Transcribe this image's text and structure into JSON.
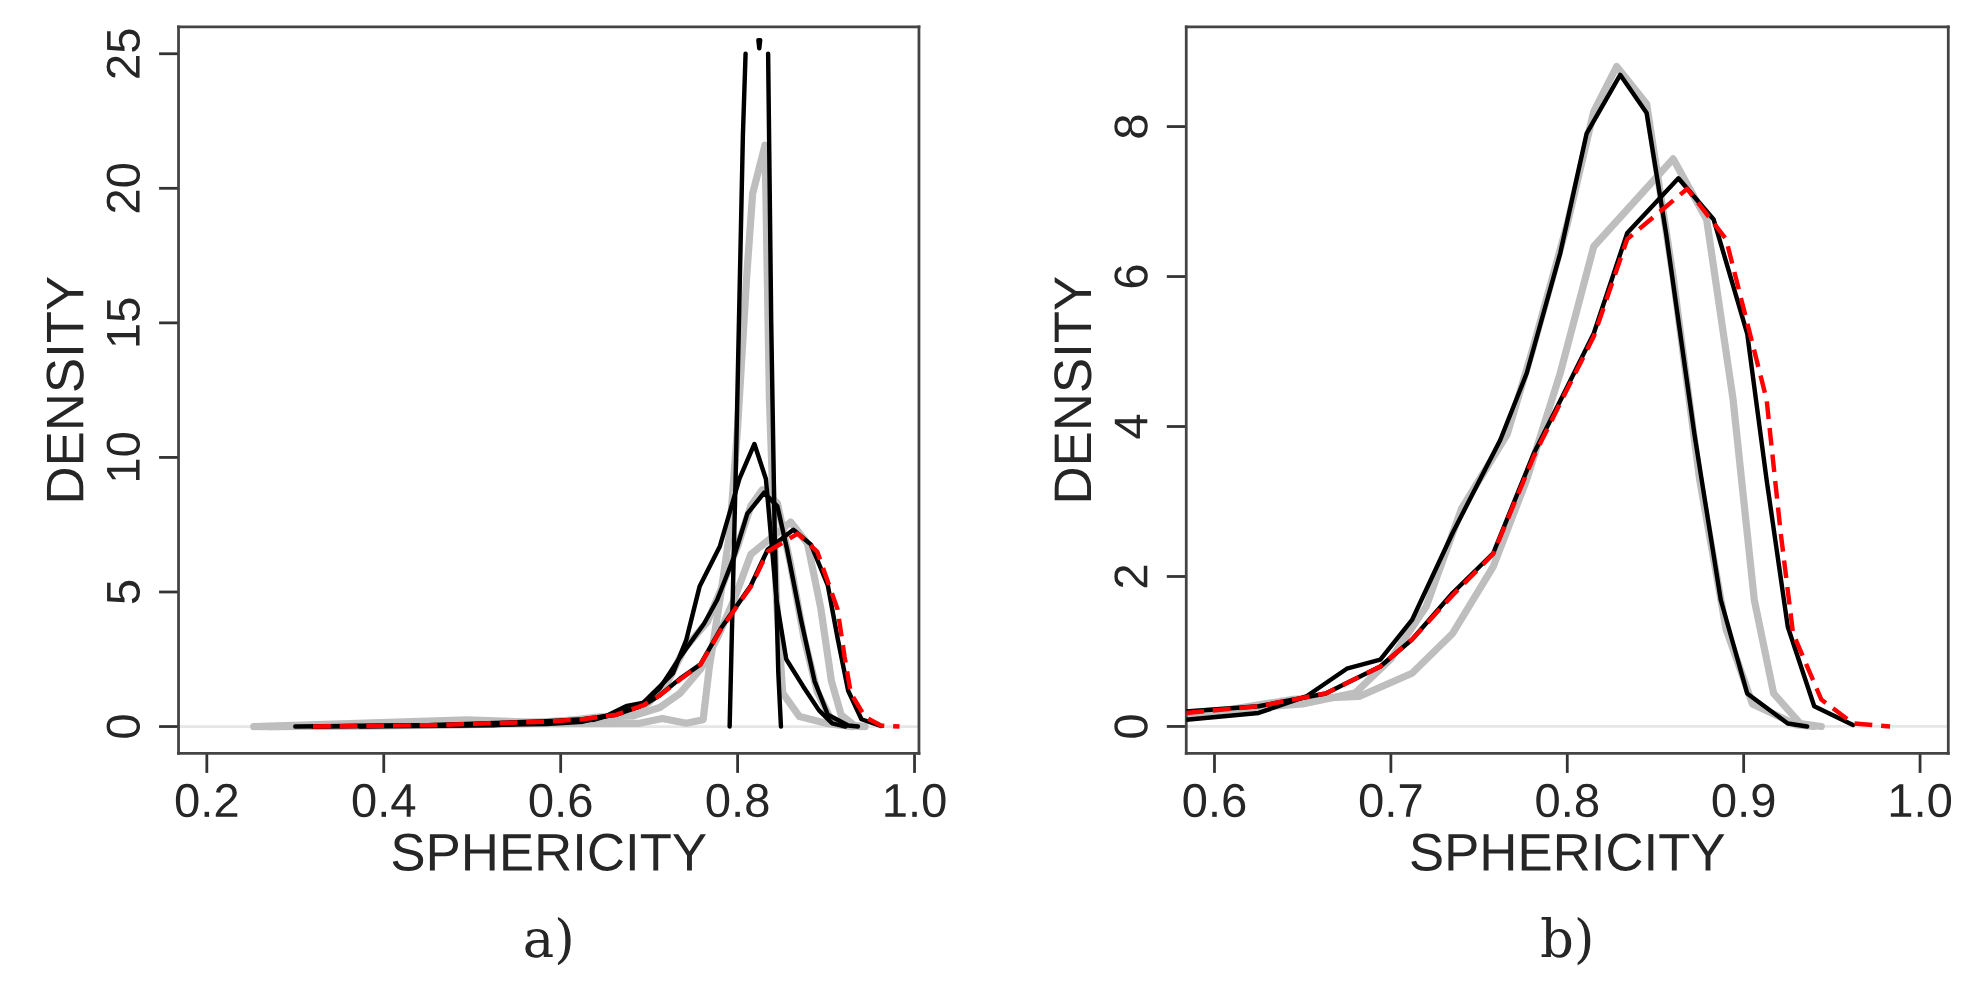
{
  "chart_data": [
    {
      "type": "line",
      "title": "a)",
      "xlabel": "SPHERICITY",
      "ylabel": "DENSITY",
      "xlim": [
        0.168,
        1.005
      ],
      "ylim": [
        -1.0,
        26.0
      ],
      "xticks": [
        {
          "value": 0.2,
          "label": "0.2"
        },
        {
          "value": 0.4,
          "label": "0.4"
        },
        {
          "value": 0.6,
          "label": "0.6"
        },
        {
          "value": 0.8,
          "label": "0.8"
        },
        {
          "value": 1.0,
          "label": "1.0"
        }
      ],
      "yticks": [
        0,
        5,
        10,
        15,
        20,
        25
      ],
      "grid": false,
      "legend": false,
      "ref_lines": [
        {
          "axis": "y",
          "value": 0,
          "color": "#e6e6e6"
        }
      ],
      "series": [
        {
          "color": "#bebebe",
          "x": [
            0.253,
            0.494,
            0.599,
            0.689,
            0.715,
            0.742,
            0.761,
            0.768,
            0.78,
            0.791,
            0.8,
            0.81,
            0.817,
            0.831,
            0.836,
            0.844,
            0.851,
            0.87,
            0.9,
            0.93
          ],
          "values": [
            0,
            0.25,
            0.12,
            0.12,
            0.3,
            0.12,
            0.25,
            2.2,
            4.7,
            7.2,
            11.1,
            16.6,
            19.8,
            21.6,
            12.1,
            4.7,
            1.24,
            0.37,
            0.12,
            0
          ]
        },
        {
          "color": "#bebebe",
          "x": [
            0.26,
            0.4,
            0.5,
            0.584,
            0.65,
            0.68,
            0.7,
            0.72,
            0.74,
            0.766,
            0.78,
            0.8,
            0.815,
            0.828,
            0.845,
            0.86,
            0.875,
            0.89,
            0.905,
            0.93,
            0.94
          ],
          "values": [
            0,
            0.03,
            0.08,
            0.18,
            0.3,
            0.45,
            0.9,
            1.6,
            2.9,
            3.9,
            5.0,
            6.7,
            8.2,
            8.8,
            8.3,
            6.0,
            3.3,
            1.3,
            0.3,
            0.02,
            0
          ]
        },
        {
          "color": "#bebebe",
          "x": [
            0.27,
            0.45,
            0.584,
            0.644,
            0.682,
            0.712,
            0.735,
            0.758,
            0.777,
            0.796,
            0.815,
            0.86,
            0.879,
            0.894,
            0.906,
            0.917,
            0.932,
            0.944
          ],
          "values": [
            0,
            0.04,
            0.13,
            0.36,
            0.4,
            0.71,
            1.24,
            2.13,
            3.29,
            4.71,
            6.4,
            7.6,
            6.8,
            4.4,
            1.7,
            0.44,
            0.04,
            0
          ]
        },
        {
          "color": "#000000",
          "x": [
            0.791,
            0.798,
            0.806,
            0.809,
            null,
            0.8235,
            0.8245,
            0.8255,
            null,
            0.8345,
            0.838,
            0.842,
            0.846,
            0.849
          ],
          "values": [
            0,
            9.6,
            22.0,
            25.0,
            null,
            25.5,
            25.2,
            25.5,
            null,
            25.0,
            15.0,
            7.0,
            2.0,
            0
          ]
        },
        {
          "color": "#000000",
          "x": [
            0.373,
            0.524,
            0.637,
            0.689,
            0.727,
            0.742,
            0.757,
            0.78,
            0.802,
            0.819,
            0.832,
            0.844,
            0.855,
            0.874,
            0.892,
            0.907,
            0.922
          ],
          "values": [
            0,
            0.05,
            0.25,
            0.74,
            1.98,
            3.22,
            5.2,
            6.7,
            9.2,
            10.5,
            9.2,
            4.7,
            2.5,
            1.5,
            0.6,
            0.12,
            0
          ]
        },
        {
          "color": "#000000",
          "x": [
            0.32,
            0.448,
            0.584,
            0.625,
            0.652,
            0.675,
            0.694,
            0.712,
            0.735,
            0.762,
            0.777,
            0.796,
            0.811,
            0.83,
            0.845,
            0.856,
            0.872,
            0.887,
            0.902,
            0.925,
            0.936
          ],
          "values": [
            0,
            0.05,
            0.09,
            0.18,
            0.4,
            0.77,
            0.89,
            1.42,
            2.58,
            3.82,
            4.71,
            6.31,
            7.91,
            8.69,
            8.18,
            6.58,
            3.91,
            1.69,
            0.44,
            0.04,
            0
          ]
        },
        {
          "color": "#000000",
          "x": [
            0.3,
            0.45,
            0.584,
            0.625,
            0.663,
            0.694,
            0.712,
            0.735,
            0.758,
            0.781,
            0.8,
            0.815,
            0.834,
            0.863,
            0.883,
            0.902,
            0.913,
            0.925,
            0.94,
            0.962
          ],
          "values": [
            0,
            0.05,
            0.2,
            0.27,
            0.44,
            0.8,
            1.16,
            1.78,
            2.31,
            3.64,
            4.53,
            5.24,
            6.58,
            7.31,
            6.76,
            5.24,
            3.29,
            1.33,
            0.27,
            0.02
          ]
        },
        {
          "color": "#ff0000",
          "line_style": "dashed",
          "x": [
            0.32,
            0.45,
            0.584,
            0.625,
            0.663,
            0.694,
            0.712,
            0.735,
            0.758,
            0.781,
            0.8,
            0.815,
            0.834,
            0.868,
            0.89,
            0.913,
            0.921,
            0.928,
            0.944,
            0.962,
            0.983
          ],
          "values": [
            0,
            0.05,
            0.18,
            0.27,
            0.44,
            0.8,
            1.16,
            1.75,
            2.3,
            3.6,
            4.5,
            5.2,
            6.5,
            7.17,
            6.5,
            4.36,
            2.58,
            1.24,
            0.36,
            0.04,
            0
          ]
        }
      ]
    },
    {
      "type": "line",
      "title": "b)",
      "xlabel": "SPHERICITY",
      "ylabel": "DENSITY",
      "xlim": [
        0.584,
        1.016
      ],
      "ylim": [
        -0.36,
        9.33
      ],
      "xticks": [
        0.6,
        0.7,
        0.8,
        0.9,
        {
          "value": 1.0,
          "label": "1.0"
        }
      ],
      "yticks": [
        0,
        2,
        4,
        6,
        8
      ],
      "grid": false,
      "legend": false,
      "ref_lines": [
        {
          "axis": "y",
          "value": 0,
          "color": "#e6e6e6"
        }
      ],
      "series": [
        {
          "color": "#bebebe",
          "x": [
            0.584,
            0.65,
            0.68,
            0.7,
            0.72,
            0.74,
            0.766,
            0.78,
            0.8,
            0.815,
            0.828,
            0.845,
            0.86,
            0.875,
            0.89,
            0.905,
            0.93,
            0.94
          ],
          "values": [
            0.18,
            0.3,
            0.45,
            0.9,
            1.6,
            2.9,
            3.9,
            5.0,
            6.7,
            8.2,
            8.8,
            8.3,
            6.0,
            3.3,
            1.3,
            0.3,
            0.02,
            0
          ]
        },
        {
          "color": "#bebebe",
          "x": [
            0.584,
            0.644,
            0.682,
            0.712,
            0.735,
            0.758,
            0.777,
            0.796,
            0.815,
            0.86,
            0.879,
            0.894,
            0.906,
            0.917,
            0.932,
            0.944
          ],
          "values": [
            0.13,
            0.36,
            0.4,
            0.71,
            1.24,
            2.13,
            3.29,
            4.71,
            6.4,
            7.57,
            6.76,
            4.36,
            1.69,
            0.44,
            0.04,
            0
          ]
        },
        {
          "color": "#000000",
          "x": [
            0.584,
            0.625,
            0.652,
            0.675,
            0.694,
            0.712,
            0.735,
            0.762,
            0.777,
            0.796,
            0.811,
            0.83,
            0.845,
            0.856,
            0.872,
            0.887,
            0.902,
            0.925,
            0.936
          ],
          "values": [
            0.09,
            0.18,
            0.4,
            0.77,
            0.89,
            1.42,
            2.58,
            3.82,
            4.71,
            6.31,
            7.91,
            8.69,
            8.18,
            6.58,
            3.91,
            1.69,
            0.44,
            0.04,
            0
          ]
        },
        {
          "color": "#000000",
          "x": [
            0.584,
            0.625,
            0.663,
            0.694,
            0.712,
            0.735,
            0.758,
            0.781,
            0.8,
            0.815,
            0.834,
            0.863,
            0.883,
            0.902,
            0.913,
            0.925,
            0.94,
            0.962
          ],
          "values": [
            0.2,
            0.27,
            0.44,
            0.8,
            1.16,
            1.78,
            2.31,
            3.64,
            4.53,
            5.24,
            6.58,
            7.31,
            6.76,
            5.24,
            3.29,
            1.33,
            0.27,
            0.02
          ]
        },
        {
          "color": "#ff0000",
          "line_style": "dashed",
          "x": [
            0.584,
            0.625,
            0.663,
            0.694,
            0.712,
            0.735,
            0.758,
            0.781,
            0.8,
            0.815,
            0.834,
            0.868,
            0.89,
            0.913,
            0.921,
            0.928,
            0.944,
            0.962,
            0.983
          ],
          "values": [
            0.18,
            0.27,
            0.44,
            0.8,
            1.16,
            1.75,
            2.3,
            3.6,
            4.5,
            5.2,
            6.5,
            7.17,
            6.5,
            4.36,
            2.58,
            1.24,
            0.36,
            0.04,
            0
          ]
        }
      ]
    }
  ]
}
